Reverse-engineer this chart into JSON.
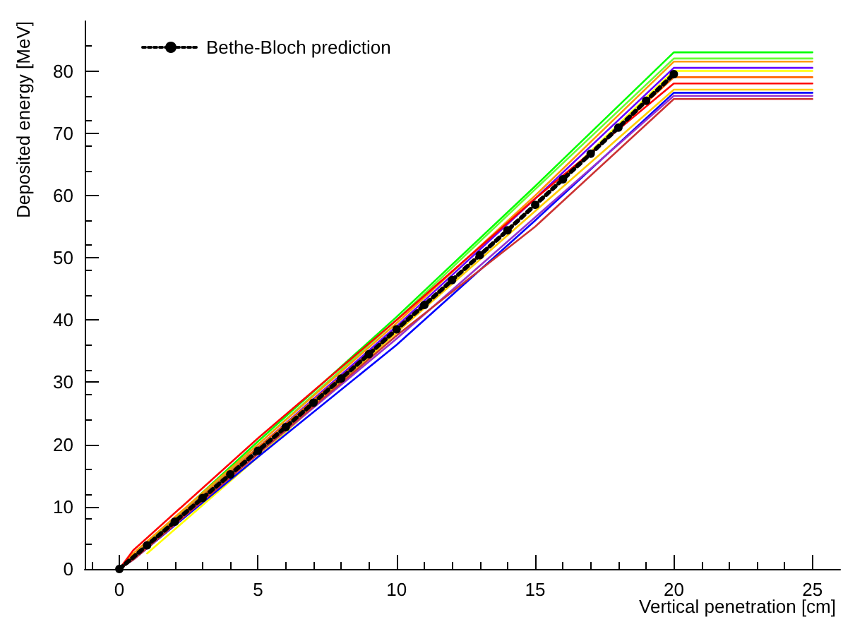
{
  "chart_data": {
    "type": "line",
    "xlabel": "Vertical penetration [cm]",
    "ylabel": "Deposited energy [MeV]",
    "xlim": [
      -1.25,
      26
    ],
    "ylim": [
      0,
      88
    ],
    "xticks": [
      0,
      5,
      10,
      15,
      20,
      25
    ],
    "yticks": [
      0,
      10,
      20,
      30,
      40,
      50,
      60,
      70,
      80
    ],
    "grid": false,
    "legend": "top left",
    "series": [
      {
        "color": "#00ff00",
        "x": [
          0,
          0.5,
          5,
          10,
          15,
          20,
          25
        ],
        "values": [
          0,
          2,
          20.5,
          40.5,
          61.5,
          83,
          83
        ]
      },
      {
        "color": "#66ff33",
        "x": [
          0,
          0.5,
          5,
          10,
          15,
          20,
          25
        ],
        "values": [
          0,
          2,
          20,
          40,
          61,
          82,
          82
        ]
      },
      {
        "color": "#ff9900",
        "x": [
          0,
          0.5,
          5,
          10,
          15,
          20,
          25
        ],
        "values": [
          0,
          2.5,
          20,
          39.5,
          60,
          81.5,
          81.5
        ]
      },
      {
        "color": "#6600ff",
        "x": [
          0,
          0.5,
          5,
          10,
          15,
          20,
          25
        ],
        "values": [
          0,
          2,
          19.5,
          39,
          59.5,
          80.5,
          80.5
        ]
      },
      {
        "color": "#ffff00",
        "x": [
          1,
          5,
          10,
          15,
          20,
          25
        ],
        "values": [
          2.5,
          18,
          38,
          58.5,
          80,
          80
        ]
      },
      {
        "color": "#ff6600",
        "x": [
          0,
          0.5,
          5,
          10,
          15,
          20,
          25
        ],
        "values": [
          0,
          2,
          19.5,
          38.5,
          58.5,
          79,
          79
        ]
      },
      {
        "color": "#ff0000",
        "x": [
          0,
          0.5,
          5,
          10,
          15,
          20,
          25
        ],
        "values": [
          0,
          3,
          21,
          40,
          59.5,
          78,
          78
        ]
      },
      {
        "color": "#ffcc00",
        "x": [
          0,
          0.5,
          5,
          10,
          15,
          20,
          25
        ],
        "values": [
          0,
          1.5,
          18.5,
          38,
          57.5,
          77,
          77
        ]
      },
      {
        "color": "#0000ff",
        "x": [
          0,
          0.5,
          5,
          10,
          15,
          20,
          25
        ],
        "values": [
          0,
          1.5,
          18,
          36,
          56,
          76.5,
          76.5
        ]
      },
      {
        "color": "#9933cc",
        "x": [
          0,
          0.5,
          5,
          10,
          15,
          20,
          25
        ],
        "values": [
          0,
          1.5,
          18.5,
          37,
          56.5,
          76,
          76
        ]
      },
      {
        "color": "#cc3333",
        "x": [
          0,
          0.5,
          5,
          10,
          15,
          20,
          25
        ],
        "values": [
          0,
          1.5,
          18.5,
          37.5,
          55,
          75.5,
          75.5
        ]
      },
      {
        "name": "Bethe-Bloch prediction",
        "color": "#000000",
        "line_style": "dotted",
        "marker": "circle",
        "x": [
          0,
          1,
          2,
          3,
          4,
          5,
          6,
          7,
          8,
          9,
          10,
          11,
          12,
          13,
          14,
          15,
          16,
          17,
          18,
          19,
          20
        ],
        "values": [
          0,
          3.8,
          7.6,
          11.4,
          15.2,
          19,
          22.8,
          26.7,
          30.6,
          34.5,
          38.5,
          42.4,
          46.4,
          50.4,
          54.4,
          58.5,
          62.6,
          66.7,
          70.9,
          75.2,
          79.5
        ]
      }
    ]
  }
}
